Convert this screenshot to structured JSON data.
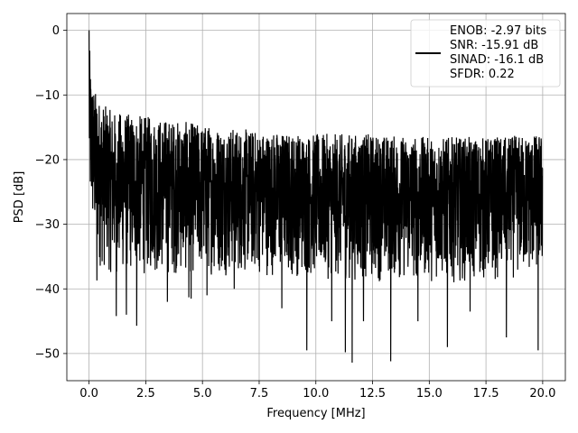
{
  "chart_data": {
    "type": "line",
    "title": "",
    "xlabel": "Frequency [MHz]",
    "ylabel": "PSD [dB]",
    "xlim": [
      -0.98,
      21.0
    ],
    "ylim": [
      -54.2,
      2.6
    ],
    "x_ticks": [
      0.0,
      2.5,
      5.0,
      7.5,
      10.0,
      12.5,
      15.0,
      17.5,
      20.0
    ],
    "x_tick_labels": [
      "0.0",
      "2.5",
      "5.0",
      "7.5",
      "10.0",
      "12.5",
      "15.0",
      "17.5",
      "20.0"
    ],
    "y_ticks": [
      0,
      -10,
      -20,
      -30,
      -40,
      -50
    ],
    "y_tick_labels": [
      "0",
      "−10",
      "−20",
      "−30",
      "−40",
      "−50"
    ],
    "grid": true,
    "legend_position": "top-right",
    "line_color": "#000000",
    "series": [
      {
        "name": "ENOB: -2.97 bits\nSNR: -15.91 dB\nSINAD: -16.1 dB\nSFDR: 0.22",
        "x_range": [
          0.0,
          20.0
        ],
        "envelope_x": [
          0.0,
          0.05,
          0.15,
          0.3,
          0.5,
          1.0,
          2.0,
          3.0,
          5.0,
          7.5,
          10.0,
          12.5,
          15.0,
          17.5,
          20.0
        ],
        "envelope_upper": [
          0.0,
          -5.0,
          -8.0,
          -9.5,
          -11.0,
          -12.5,
          -13.0,
          -13.5,
          -14.5,
          -15.5,
          -16.0,
          -16.0,
          -16.5,
          -16.5,
          -16.0
        ],
        "envelope_lower": [
          -26.0,
          -30.0,
          -32.0,
          -35.0,
          -37.0,
          -38.0,
          -38.0,
          -38.0,
          -38.0,
          -38.0,
          -38.5,
          -39.0,
          -39.0,
          -39.0,
          -38.0
        ],
        "dips": [
          [
            0.35,
            -38.7
          ],
          [
            1.2,
            -44.2
          ],
          [
            1.65,
            -44.0
          ],
          [
            2.1,
            -45.7
          ],
          [
            3.45,
            -42.0
          ],
          [
            4.4,
            -41.3
          ],
          [
            4.5,
            -41.5
          ],
          [
            5.2,
            -41.0
          ],
          [
            6.4,
            -40.0
          ],
          [
            8.5,
            -43.0
          ],
          [
            9.6,
            -49.5
          ],
          [
            10.7,
            -45.0
          ],
          [
            11.3,
            -49.8
          ],
          [
            11.6,
            -51.4
          ],
          [
            12.1,
            -45.0
          ],
          [
            13.3,
            -51.2
          ],
          [
            14.5,
            -45.0
          ],
          [
            15.8,
            -49.0
          ],
          [
            16.8,
            -43.5
          ],
          [
            18.4,
            -47.5
          ],
          [
            19.8,
            -49.5
          ]
        ]
      }
    ]
  }
}
